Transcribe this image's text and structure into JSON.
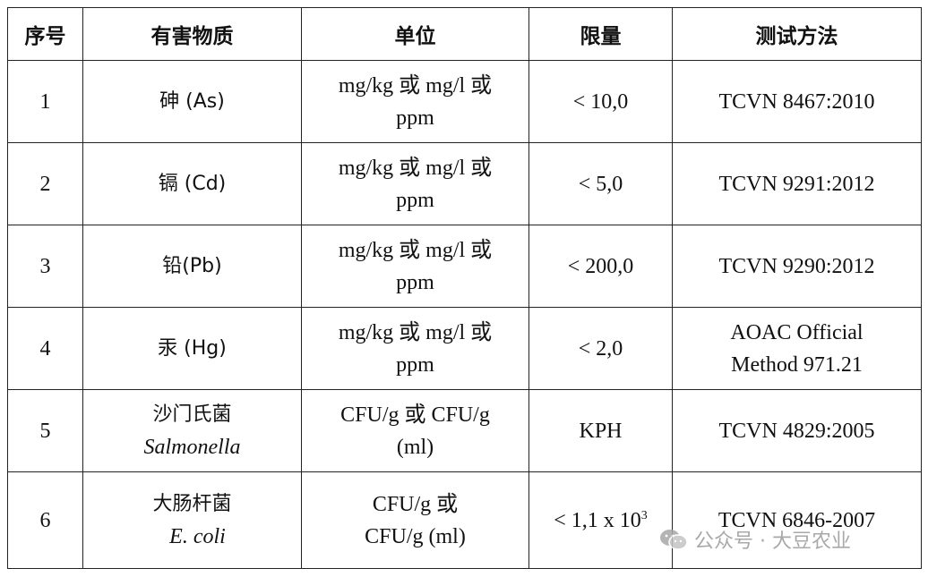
{
  "header": {
    "col_no": "序号",
    "col_substance": "有害物质",
    "col_unit": "单位",
    "col_limit": "限量",
    "col_method": "测试方法"
  },
  "rows": [
    {
      "no": "1",
      "substance": "砷 (As)",
      "latin": "",
      "unit_l1": "mg/kg 或 mg/l 或",
      "unit_l2": "ppm",
      "limit": "< 10,0",
      "limit_exp": "",
      "method_l1": "TCVN 8467:2010",
      "method_l2": ""
    },
    {
      "no": "2",
      "substance": "镉 (Cd)",
      "latin": "",
      "unit_l1": "mg/kg 或 mg/l 或",
      "unit_l2": "ppm",
      "limit": "< 5,0",
      "limit_exp": "",
      "method_l1": "TCVN 9291:2012",
      "method_l2": ""
    },
    {
      "no": "3",
      "substance": "铅(Pb)",
      "latin": "",
      "unit_l1": "mg/kg 或 mg/l 或",
      "unit_l2": "ppm",
      "limit": "< 200,0",
      "limit_exp": "",
      "method_l1": "TCVN 9290:2012",
      "method_l2": ""
    },
    {
      "no": "4",
      "substance": "汞 (Hg)",
      "latin": "",
      "unit_l1": "mg/kg 或 mg/l 或",
      "unit_l2": "ppm",
      "limit": "< 2,0",
      "limit_exp": "",
      "method_l1": "AOAC Official",
      "method_l2": "Method 971.21"
    },
    {
      "no": "5",
      "substance": "沙门氏菌",
      "latin": "Salmonella",
      "unit_l1": "CFU/g 或 CFU/g",
      "unit_l2": "(ml)",
      "limit": "KPH",
      "limit_exp": "",
      "method_l1": "TCVN 4829:2005",
      "method_l2": ""
    },
    {
      "no": "6",
      "substance": "大肠杆菌",
      "latin": "E. coli",
      "unit_l1": "CFU/g 或",
      "unit_l2": "CFU/g (ml)",
      "limit": "< 1,1 x 10",
      "limit_exp": "3",
      "method_l1": "TCVN 6846-2007",
      "method_l2": ""
    }
  ],
  "watermark": {
    "icon": "wechat-icon",
    "text": "公众号 · 大豆农业"
  }
}
